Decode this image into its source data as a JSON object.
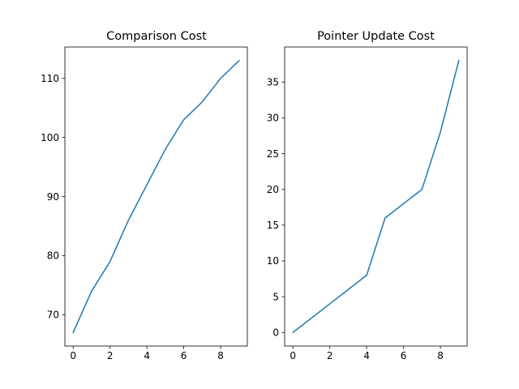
{
  "chart_data": [
    {
      "type": "line",
      "title": "Comparison Cost",
      "xlabel": "",
      "ylabel": "",
      "x": [
        0,
        1,
        2,
        3,
        4,
        5,
        6,
        7,
        8,
        9
      ],
      "series": [
        {
          "values": [
            67,
            74,
            79,
            86,
            92,
            98,
            103,
            106,
            110,
            113
          ]
        }
      ],
      "xlim": [
        -0.45,
        9.45
      ],
      "ylim": [
        64.7,
        115.3
      ],
      "xticks": [
        0,
        2,
        4,
        6,
        8
      ],
      "yticks": [
        70,
        80,
        90,
        100,
        110
      ],
      "xtick_labels": [
        "0",
        "2",
        "4",
        "6",
        "8"
      ],
      "ytick_labels": [
        "70",
        "80",
        "90",
        "100",
        "110"
      ],
      "grid": false,
      "line_color": "#1f77b4"
    },
    {
      "type": "line",
      "title": "Pointer Update Cost",
      "xlabel": "",
      "ylabel": "",
      "x": [
        0,
        1,
        2,
        3,
        4,
        5,
        6,
        7,
        8,
        9
      ],
      "series": [
        {
          "values": [
            0,
            2,
            4,
            6,
            8,
            16,
            18,
            20,
            28,
            38
          ]
        }
      ],
      "xlim": [
        -0.45,
        9.45
      ],
      "ylim": [
        -1.9,
        39.9
      ],
      "xticks": [
        0,
        2,
        4,
        6,
        8
      ],
      "yticks": [
        0,
        5,
        10,
        15,
        20,
        25,
        30,
        35
      ],
      "xtick_labels": [
        "0",
        "2",
        "4",
        "6",
        "8"
      ],
      "ytick_labels": [
        "0",
        "5",
        "10",
        "15",
        "20",
        "25",
        "30",
        "35"
      ],
      "grid": false,
      "line_color": "#1f77b4"
    }
  ]
}
